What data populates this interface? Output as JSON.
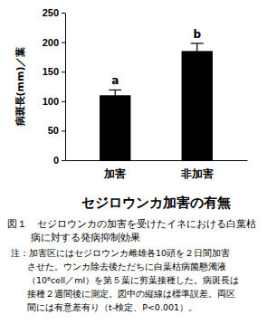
{
  "chart_data": {
    "type": "bar",
    "title": [
      "図１　セジロウンカの加害を受けたイネにおける白葉枯",
      "病に対する発病抑制効果"
    ],
    "note": [
      "注：加害区にはセジロウンカ雌雄各10頭を２日間加害",
      "させた。ウンカ除去後ただちに白葉枯病菌懸濁液",
      "（10⁸cell／ml）を第５葉に剪葉接種した。病斑長は",
      "接種２週間後に測定。図中の縦線は標準誤差。両区",
      "間には有意差有り（t-検定、P<0.001）。"
    ],
    "xlabel": "セジロウンカ加害の有無",
    "ylabel": "病斑長(mm)／葉",
    "categories": [
      "加害",
      "非加害"
    ],
    "values": [
      110,
      185
    ],
    "errors": [
      9,
      13
    ],
    "annotations": [
      "a",
      "b"
    ],
    "color": "#000000",
    "ylim": [
      0,
      250
    ],
    "yticks": [
      0,
      50,
      100,
      150,
      200,
      250
    ]
  }
}
